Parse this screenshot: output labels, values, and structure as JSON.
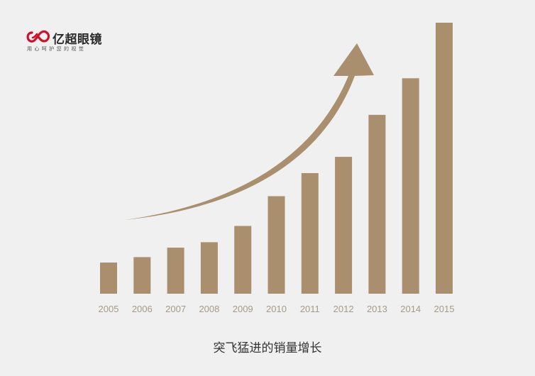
{
  "brand": {
    "name": "亿超眼镜",
    "slogan": "用心呵护您的视觉",
    "logo_color": "#d0102a"
  },
  "caption": "突飞猛进的销量增长",
  "colors": {
    "bar": "#aa8f6f",
    "arrow": "#aa8f6f",
    "tick_label": "#a59a8a"
  },
  "chart_data": {
    "type": "bar",
    "categories": [
      "2005",
      "2006",
      "2007",
      "2008",
      "2009",
      "2010",
      "2011",
      "2012",
      "2013",
      "2014",
      "2015"
    ],
    "values": [
      11.5,
      13.5,
      17,
      19,
      25,
      36,
      44.5,
      50.5,
      66,
      79.5,
      100
    ],
    "title": "突飞猛进的销量增长",
    "xlabel": "",
    "ylabel": "",
    "ylim": [
      0,
      100
    ],
    "grid": false,
    "annotations": [
      "upward-curved-arrow"
    ]
  }
}
